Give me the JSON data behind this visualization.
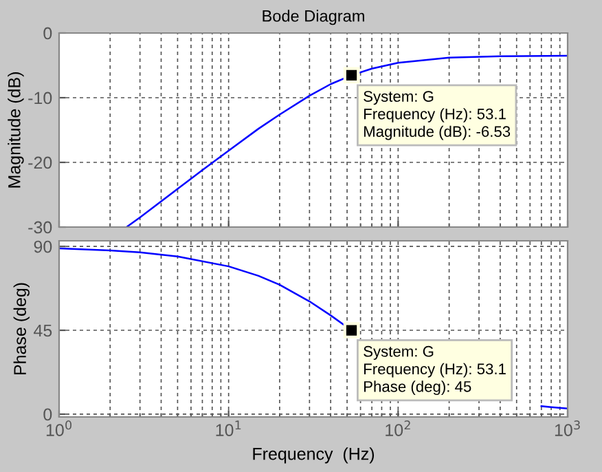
{
  "chart_data": [
    {
      "type": "line",
      "title": "Bode Diagram",
      "ylabel": "Magnitude (dB)",
      "log": "x",
      "grid": true,
      "tick_labels": "y",
      "marker": "none",
      "line_style": "solid",
      "xlim": [
        1,
        1000
      ],
      "xticks": [
        {
          "value": 1,
          "label": null
        },
        {
          "value": 10,
          "label": null
        },
        {
          "value": 100,
          "label": null
        },
        {
          "value": 1000,
          "label": null
        }
      ],
      "ylim": [
        -30,
        0
      ],
      "yticks": [
        -30,
        -20,
        -10,
        0
      ],
      "series": [
        {
          "color": "#0000ff",
          "x": [
            2.5,
            3,
            5,
            7,
            10,
            15,
            20,
            30,
            40,
            53.1,
            70,
            100,
            200,
            400,
            1000
          ],
          "values": [
            -30,
            -28.5,
            -24.1,
            -21.2,
            -18.2,
            -14.8,
            -12.6,
            -9.7,
            -7.9,
            -6.53,
            -5.5,
            -4.6,
            -3.8,
            -3.6,
            -3.5
          ]
        }
      ],
      "annotations": [
        {
          "text": "System: G\nFrequency (Hz): 53.1\nMagnitude (dB): -6.53",
          "x": 53.1,
          "y": -6.53
        }
      ]
    },
    {
      "type": "line",
      "xlabel": "Frequency  (Hz)",
      "ylabel": "Phase (deg)",
      "log": "x",
      "grid": true,
      "marker": "none",
      "line_style": "solid",
      "xlim": [
        1,
        1000
      ],
      "xticks": [
        {
          "value": 1,
          "label": "10$^{0}$"
        },
        {
          "value": 10,
          "label": "10$^{1}$"
        },
        {
          "value": 100,
          "label": "10$^{2}$"
        },
        {
          "value": 1000,
          "label": "10$^{3}$"
        }
      ],
      "ylim": [
        -1.5,
        93
      ],
      "yticks": [
        0,
        45,
        90
      ],
      "series": [
        {
          "color": "#0000ff",
          "x": [
            1,
            2,
            3,
            5,
            10,
            15,
            20,
            30,
            40,
            53.1,
            70,
            100,
            200,
            300,
            500,
            700,
            800,
            1000
          ],
          "values": [
            88.9,
            87.8,
            86.8,
            84.6,
            79.3,
            74.2,
            69.4,
            60.5,
            53.0,
            45,
            null,
            null,
            null,
            null,
            null,
            4.3,
            3.8,
            3.0
          ]
        }
      ],
      "annotations": [
        {
          "text": "System: G\nFrequency (Hz): 53.1\nPhase (deg): 45",
          "x": 53.1,
          "y": 45
        }
      ]
    }
  ]
}
